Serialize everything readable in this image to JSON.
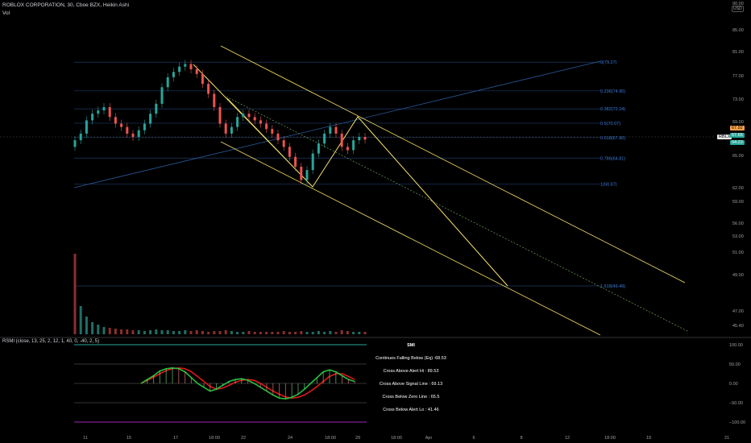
{
  "header": {
    "title": "ROBLOX CORPORATION, 30, Cboe BZX, Heikin Ashi",
    "vol": "Vol",
    "currency": "USD"
  },
  "price_axis": {
    "ticks": [
      "90.00",
      "85.00",
      "81.00",
      "77.00",
      "73.00",
      "69.00",
      "65.00",
      "62.00",
      "59.00",
      "56.00",
      "53.00",
      "51.00",
      "49.00",
      "47.00",
      "45.40"
    ]
  },
  "rsmi_axis": {
    "ticks": [
      "100.00",
      "50.00",
      "0.00",
      "−50.00",
      "−100.00"
    ]
  },
  "time_axis": {
    "ticks": [
      "11",
      "15",
      "17",
      "18:00",
      "22",
      "24",
      "18:00",
      "29",
      "18:00",
      "Apr",
      "6",
      "8",
      "12",
      "18:00",
      "19",
      "21"
    ]
  },
  "fib_levels": [
    {
      "label": "0(79.27)",
      "value": 79.27
    },
    {
      "label": "0.236(74.95)",
      "value": 74.95
    },
    {
      "label": "0.382(72.24)",
      "value": 72.24
    },
    {
      "label": "0.5(70.07)",
      "value": 70.07
    },
    {
      "label": "0.618(67.90)",
      "value": 67.9
    },
    {
      "label": "0.786(64.81)",
      "value": 64.81
    },
    {
      "label": "1(60.87)",
      "value": 60.87
    },
    {
      "label": "1.618(49.49)",
      "value": 49.49
    }
  ],
  "price_tags": {
    "high": "67.92",
    "symbol": "RBLX",
    "last": "67.65",
    "timer": "04:23"
  },
  "rsmi": {
    "title": "RSMI (close, 13, 25, 2, 12, 1, 40, 0, -40, 2, 5)",
    "table_title": "SMI",
    "rows": [
      "Continues Falling Below (Eq) :68.53",
      "Cross Above Alert Hi : 89.53",
      "Cross Above Signal Line : 69.13",
      "Cross Below Zero Line : 65.5",
      "Cross Below Alert Lo : 41.46"
    ]
  },
  "chart_data": {
    "type": "candlestick",
    "title": "ROBLOX CORPORATION, 30, Cboe BZX, Heikin Ashi",
    "ylim": [
      44.5,
      92
    ],
    "series_close": [
      67.5,
      68.5,
      70.5,
      71.5,
      72,
      72.5,
      71,
      70,
      69.5,
      68.5,
      68,
      69,
      70,
      71.5,
      73,
      75.5,
      77,
      77.8,
      78.6,
      79.0,
      78.2,
      77.5,
      76,
      74.5,
      72.5,
      70,
      68.5,
      69.5,
      71,
      71.5,
      71,
      70.5,
      70,
      69.2,
      68.5,
      67.5,
      66.5,
      65,
      63.5,
      61.5,
      63,
      65.5,
      67,
      68.5,
      69.5,
      68.5,
      66.5,
      66,
      67.5,
      68,
      67.6
    ],
    "fib_retracement": {
      "high": 79.27,
      "low": 60.87
    },
    "volume": [
      100,
      35,
      22,
      15,
      12,
      9,
      8,
      7,
      6,
      6,
      5,
      5,
      4,
      5,
      6,
      5,
      5,
      4,
      4,
      5,
      4,
      5,
      4,
      3,
      4,
      4,
      5,
      4,
      3,
      3,
      4,
      3,
      3,
      3,
      3,
      3,
      4,
      3,
      3,
      4,
      3,
      3,
      4,
      3,
      4,
      3,
      5,
      4,
      3,
      3,
      3
    ],
    "colors": {
      "up": "#26a69a",
      "down": "#ef5350",
      "channel": "#f5e06b",
      "fib": "#2962ff",
      "rsmi_up": "#26c040",
      "rsmi_down": "#e01818"
    }
  }
}
